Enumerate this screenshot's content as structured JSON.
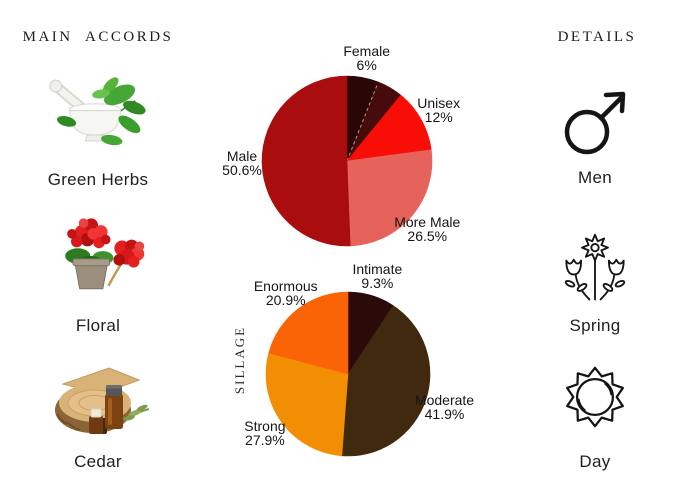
{
  "colors": {
    "background": "#ffffff",
    "text": "#1b1b1b",
    "divider_line": "#b49a9a"
  },
  "left_panel": {
    "title": "MAIN ACCORDS",
    "items": [
      {
        "label": "Green Herbs",
        "icon": "green-herbs-photo"
      },
      {
        "label": "Floral",
        "icon": "red-geranium-photo"
      },
      {
        "label": "Cedar",
        "icon": "cedar-wood-oil-photo"
      }
    ]
  },
  "right_panel": {
    "title": "DETAILS",
    "items": [
      {
        "label": "Men",
        "icon": "male-symbol-icon"
      },
      {
        "label": "Spring",
        "icon": "spring-flowers-icon"
      },
      {
        "label": "Day",
        "icon": "day-sun-icon"
      }
    ]
  },
  "chart_data": [
    {
      "type": "pie",
      "name": "gender-votes",
      "start_angle_deg": 0,
      "direction": "clockwise",
      "legend_position": "outside-labels",
      "divider_color": "#b49a9a",
      "slices": [
        {
          "label": "Female",
          "pct_label": "6%",
          "value": 6,
          "color": "#2a0607"
        },
        {
          "label": "",
          "pct_label": "",
          "value": 4.9,
          "color": "#480b0b",
          "divider_before": true
        },
        {
          "label": "Unisex",
          "pct_label": "12%",
          "value": 12,
          "color": "#f90d07"
        },
        {
          "label": "More Male",
          "pct_label": "26.5%",
          "value": 26.5,
          "color": "#e6635c"
        },
        {
          "label": "Male",
          "pct_label": "50.6%",
          "value": 50.6,
          "color": "#a90d0d"
        }
      ]
    },
    {
      "type": "pie",
      "name": "sillage-votes",
      "ylabel": "SILLAGE",
      "start_angle_deg": 0,
      "direction": "clockwise",
      "legend_position": "outside-labels",
      "slices": [
        {
          "label": "Intimate",
          "pct_label": "9.3%",
          "value": 9.3,
          "color": "#2b0a0a"
        },
        {
          "label": "Moderate",
          "pct_label": "41.9%",
          "value": 41.9,
          "color": "#41290f"
        },
        {
          "label": "Strong",
          "pct_label": "27.9%",
          "value": 27.9,
          "color": "#f28e04"
        },
        {
          "label": "Enormous",
          "pct_label": "20.9%",
          "value": 20.9,
          "color": "#fb6307"
        }
      ]
    }
  ]
}
